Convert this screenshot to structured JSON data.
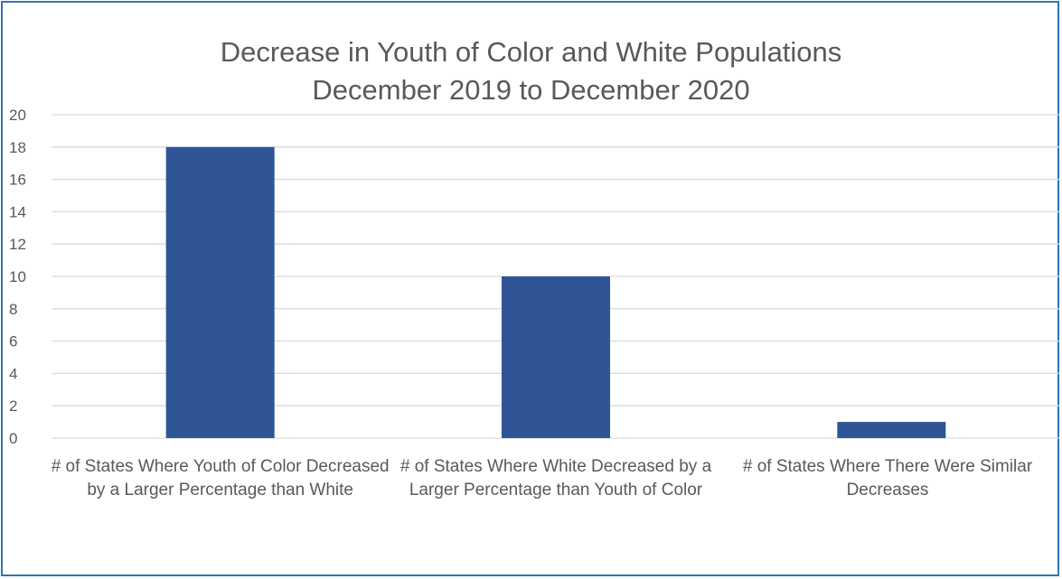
{
  "chart_data": {
    "type": "bar",
    "title": "Decrease in Youth of Color and White Populations",
    "subtitle": "December 2019 to December 2020",
    "categories": [
      "# of States Where Youth of Color Decreased by a Larger Percentage than White",
      "# of States Where White Decreased by a Larger Percentage than Youth of Color",
      "# of States Where There Were Similar Decreases"
    ],
    "values": [
      18,
      10,
      1
    ],
    "ylim": [
      0,
      20
    ],
    "ytick_step": 2,
    "yticks": [
      "0",
      "2",
      "4",
      "6",
      "8",
      "10",
      "12",
      "14",
      "16",
      "18",
      "20"
    ],
    "grid": true,
    "legend": "none",
    "bar_color": "#2f5597",
    "grid_color": "#d9d9d9"
  }
}
